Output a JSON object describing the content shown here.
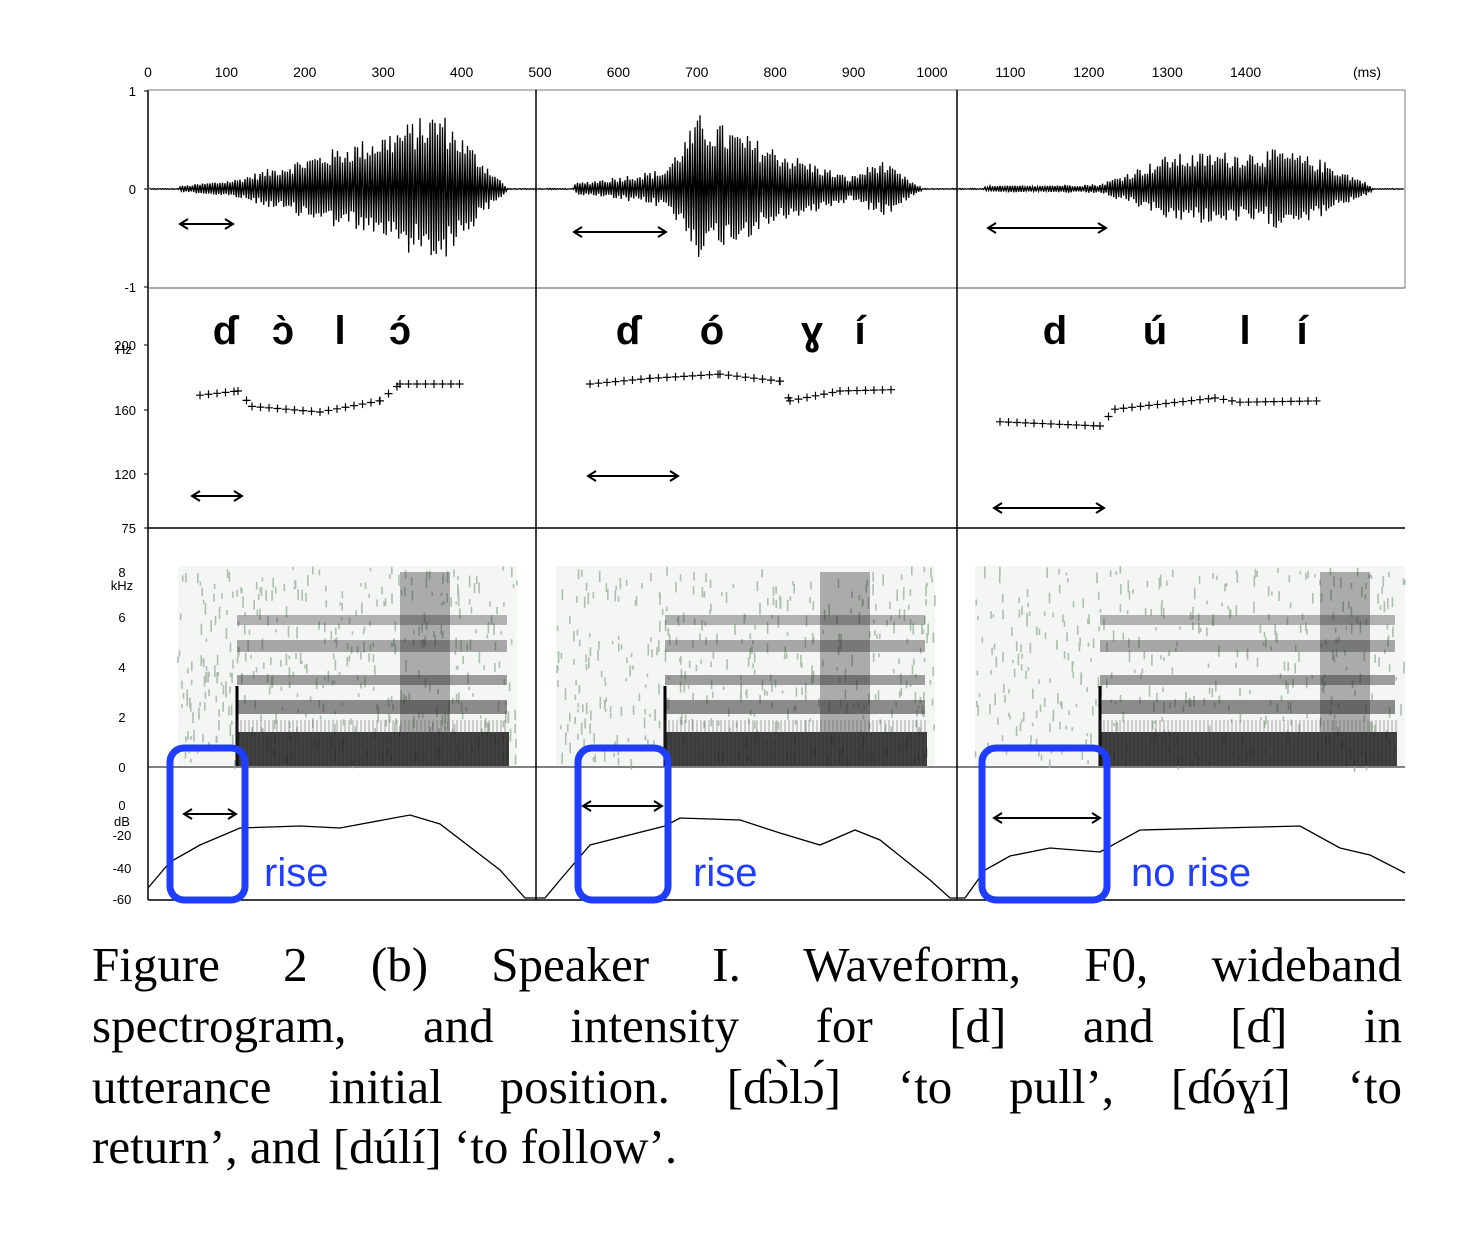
{
  "figure": {
    "time_axis": {
      "ticks": [
        "0",
        "100",
        "200",
        "300",
        "400",
        "500",
        "600",
        "700",
        "800",
        "900",
        "1000",
        "1100",
        "1200",
        "1300",
        "1400"
      ],
      "unit": "(ms)",
      "values_ms": [
        0,
        100,
        200,
        300,
        400,
        500,
        600,
        700,
        800,
        900,
        1000,
        1100,
        1200,
        1300,
        1400
      ]
    },
    "waveform": {
      "ticks": [
        "1",
        "0",
        "-1"
      ],
      "values": [
        1,
        0,
        -1
      ]
    },
    "f0": {
      "ticks": [
        "200",
        "160",
        "120",
        "75"
      ],
      "values": [
        200,
        160,
        120,
        75
      ],
      "unit": "Hz"
    },
    "spectrogram": {
      "ticks": [
        "8",
        "6",
        "4",
        "2",
        "0"
      ],
      "values": [
        8,
        6,
        4,
        2,
        0
      ],
      "unit": "kHz"
    },
    "intensity": {
      "ticks": [
        "0",
        "-20",
        "-40",
        "-60"
      ],
      "values": [
        0,
        -20,
        -40,
        -60
      ],
      "unit": "dB"
    },
    "words": [
      {
        "segments": [
          "ɗ",
          "ɔ̀",
          "l",
          "ɔ́"
        ],
        "annotation": "rise"
      },
      {
        "segments": [
          "ɗ",
          "ó",
          "ɣ",
          "í"
        ],
        "annotation": "rise"
      },
      {
        "segments": [
          "d",
          "ú",
          "l",
          "í"
        ],
        "annotation": "no rise"
      }
    ],
    "colors": {
      "highlight": "#1f3dff",
      "ink": "#000000",
      "spectrogram_dark": "#1a1a1a",
      "spectrogram_noise": "#8fa88f"
    }
  },
  "caption": {
    "lines": [
      "Figure 2 (b) Speaker I. Waveform, F0, wideband",
      "spectrogram, and intensity for [d] and [ɗ] in",
      "utterance initial position. [ɗɔ̀lɔ́] ‘to pull’, [ɗóɣí] ‘to",
      "return’, and [dúlí] ‘to follow’."
    ]
  }
}
